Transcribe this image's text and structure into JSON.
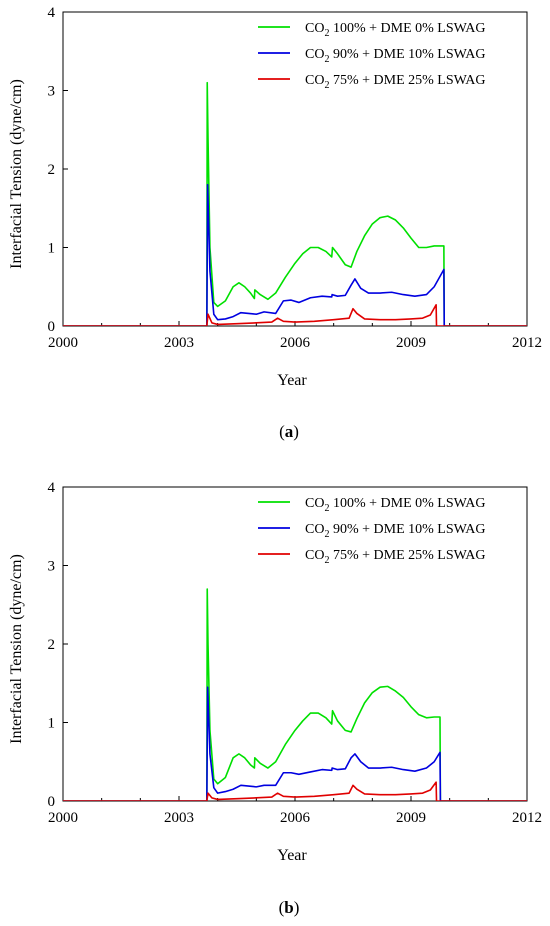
{
  "chart_data": [
    {
      "type": "line",
      "panel_label": "(a)",
      "xlabel": "Year",
      "ylabel": "Interfacial Tension (dyne/cm)",
      "xlim": [
        2000,
        2012
      ],
      "ylim": [
        0,
        4
      ],
      "xticks": [
        "2000",
        "2003",
        "2006",
        "2009",
        "2012"
      ],
      "yticks": [
        "0",
        "1",
        "2",
        "3",
        "4"
      ],
      "legend_position": "top-right",
      "series": [
        {
          "name": "CO2 100% + DME 0% LSWAG",
          "color": "#00e000",
          "x": [
            2000,
            2003.72,
            2003.73,
            2003.75,
            2003.8,
            2003.9,
            2004.0,
            2004.2,
            2004.4,
            2004.55,
            2004.7,
            2004.85,
            2004.95,
            2004.96,
            2005.1,
            2005.3,
            2005.5,
            2005.75,
            2006.0,
            2006.2,
            2006.4,
            2006.6,
            2006.8,
            2006.95,
            2006.97,
            2007.1,
            2007.3,
            2007.45,
            2007.6,
            2007.8,
            2008.0,
            2008.2,
            2008.4,
            2008.6,
            2008.8,
            2009.0,
            2009.2,
            2009.4,
            2009.6,
            2009.85,
            2009.86,
            2012
          ],
          "y": [
            0,
            0,
            3.1,
            2.4,
            1.0,
            0.3,
            0.25,
            0.32,
            0.5,
            0.55,
            0.5,
            0.42,
            0.35,
            0.46,
            0.4,
            0.34,
            0.42,
            0.62,
            0.8,
            0.92,
            1.0,
            1.0,
            0.95,
            0.88,
            1.0,
            0.92,
            0.78,
            0.75,
            0.95,
            1.15,
            1.3,
            1.38,
            1.4,
            1.35,
            1.25,
            1.12,
            1.0,
            1.0,
            1.02,
            1.02,
            0,
            0
          ]
        },
        {
          "name": "CO2 90% + DME 10% LSWAG",
          "color": "#0000e0",
          "x": [
            2000,
            2003.72,
            2003.74,
            2003.8,
            2003.9,
            2004.0,
            2004.2,
            2004.4,
            2004.6,
            2004.8,
            2005.0,
            2005.2,
            2005.5,
            2005.7,
            2005.9,
            2006.1,
            2006.4,
            2006.7,
            2006.95,
            2006.96,
            2007.1,
            2007.3,
            2007.45,
            2007.55,
            2007.7,
            2007.9,
            2008.2,
            2008.5,
            2008.8,
            2009.1,
            2009.4,
            2009.6,
            2009.85,
            2009.86,
            2012
          ],
          "y": [
            0,
            0,
            1.8,
            0.7,
            0.15,
            0.08,
            0.09,
            0.12,
            0.17,
            0.16,
            0.15,
            0.18,
            0.16,
            0.32,
            0.33,
            0.3,
            0.36,
            0.38,
            0.37,
            0.4,
            0.38,
            0.39,
            0.52,
            0.6,
            0.48,
            0.42,
            0.42,
            0.43,
            0.4,
            0.38,
            0.4,
            0.5,
            0.72,
            0,
            0
          ]
        },
        {
          "name": "CO2 75% + DME 25% LSWAG",
          "color": "#e00000",
          "x": [
            2000,
            2003.72,
            2003.75,
            2003.85,
            2004.0,
            2004.5,
            2005.0,
            2005.4,
            2005.55,
            2005.7,
            2006.0,
            2006.5,
            2007.0,
            2007.4,
            2007.5,
            2007.6,
            2007.8,
            2008.2,
            2008.6,
            2009.0,
            2009.3,
            2009.5,
            2009.65,
            2009.66,
            2012
          ],
          "y": [
            0,
            0,
            0.15,
            0.04,
            0.02,
            0.03,
            0.04,
            0.05,
            0.1,
            0.06,
            0.05,
            0.06,
            0.08,
            0.1,
            0.22,
            0.16,
            0.09,
            0.08,
            0.08,
            0.09,
            0.1,
            0.14,
            0.27,
            0,
            0
          ]
        }
      ]
    },
    {
      "type": "line",
      "panel_label": "(b)",
      "xlabel": "Year",
      "ylabel": "Interfacial Tension (dyne/cm)",
      "xlim": [
        2000,
        2012
      ],
      "ylim": [
        0,
        4
      ],
      "xticks": [
        "2000",
        "2003",
        "2006",
        "2009",
        "2012"
      ],
      "yticks": [
        "0",
        "1",
        "2",
        "3",
        "4"
      ],
      "legend_position": "top-right",
      "series": [
        {
          "name": "CO2 100% + DME 0% LSWAG",
          "color": "#00e000",
          "x": [
            2000,
            2003.72,
            2003.73,
            2003.75,
            2003.8,
            2003.9,
            2004.0,
            2004.2,
            2004.4,
            2004.55,
            2004.7,
            2004.85,
            2004.95,
            2004.96,
            2005.1,
            2005.3,
            2005.5,
            2005.75,
            2006.0,
            2006.2,
            2006.4,
            2006.6,
            2006.8,
            2006.95,
            2006.97,
            2007.1,
            2007.3,
            2007.45,
            2007.6,
            2007.8,
            2008.0,
            2008.2,
            2008.4,
            2008.6,
            2008.8,
            2009.0,
            2009.2,
            2009.4,
            2009.6,
            2009.75,
            2009.76,
            2012
          ],
          "y": [
            0,
            0,
            2.7,
            2.0,
            0.9,
            0.28,
            0.22,
            0.3,
            0.55,
            0.6,
            0.55,
            0.46,
            0.42,
            0.55,
            0.48,
            0.42,
            0.5,
            0.72,
            0.9,
            1.02,
            1.12,
            1.12,
            1.06,
            0.98,
            1.15,
            1.02,
            0.9,
            0.88,
            1.05,
            1.25,
            1.38,
            1.45,
            1.46,
            1.4,
            1.32,
            1.2,
            1.1,
            1.06,
            1.07,
            1.07,
            0,
            0
          ]
        },
        {
          "name": "CO2 90% + DME 10% LSWAG",
          "color": "#0000e0",
          "x": [
            2000,
            2003.72,
            2003.74,
            2003.8,
            2003.9,
            2004.0,
            2004.2,
            2004.4,
            2004.6,
            2004.8,
            2005.0,
            2005.2,
            2005.5,
            2005.7,
            2005.9,
            2006.1,
            2006.4,
            2006.7,
            2006.95,
            2006.96,
            2007.1,
            2007.3,
            2007.45,
            2007.55,
            2007.7,
            2007.9,
            2008.2,
            2008.5,
            2008.8,
            2009.1,
            2009.4,
            2009.6,
            2009.75,
            2009.76,
            2012
          ],
          "y": [
            0,
            0,
            1.45,
            0.6,
            0.17,
            0.1,
            0.12,
            0.15,
            0.2,
            0.19,
            0.18,
            0.2,
            0.2,
            0.36,
            0.36,
            0.34,
            0.37,
            0.4,
            0.39,
            0.42,
            0.4,
            0.41,
            0.55,
            0.6,
            0.5,
            0.42,
            0.42,
            0.43,
            0.4,
            0.38,
            0.42,
            0.5,
            0.62,
            0,
            0
          ]
        },
        {
          "name": "CO2 75% + DME 25% LSWAG",
          "color": "#e00000",
          "x": [
            2000,
            2003.72,
            2003.75,
            2003.85,
            2004.0,
            2004.5,
            2005.0,
            2005.4,
            2005.55,
            2005.7,
            2006.0,
            2006.5,
            2007.0,
            2007.4,
            2007.5,
            2007.6,
            2007.8,
            2008.2,
            2008.6,
            2009.0,
            2009.3,
            2009.5,
            2009.65,
            2009.66,
            2012
          ],
          "y": [
            0,
            0,
            0.1,
            0.04,
            0.02,
            0.03,
            0.04,
            0.05,
            0.1,
            0.06,
            0.05,
            0.06,
            0.08,
            0.1,
            0.2,
            0.15,
            0.09,
            0.08,
            0.08,
            0.09,
            0.1,
            0.14,
            0.24,
            0,
            0
          ]
        }
      ]
    }
  ],
  "legend_parts": [
    {
      "pre": "CO",
      "sub": "2",
      "post": " 100% + DME 0% LSWAG"
    },
    {
      "pre": "CO",
      "sub": "2",
      "post": " 90% + DME 10% LSWAG"
    },
    {
      "pre": "CO",
      "sub": "2",
      "post": " 75% + DME 25% LSWAG"
    }
  ],
  "captions": [
    {
      "open": "(",
      "letter": "a",
      "close": ")"
    },
    {
      "open": "(",
      "letter": "b",
      "close": ")"
    }
  ]
}
